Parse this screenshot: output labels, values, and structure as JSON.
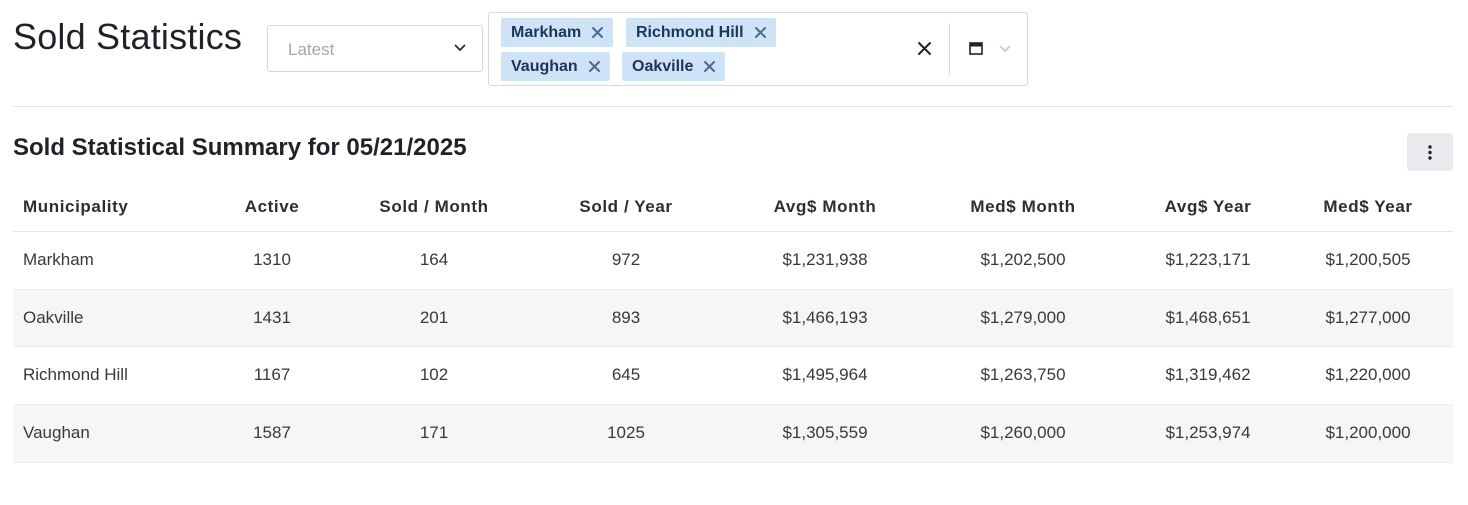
{
  "header": {
    "title": "Sold Statistics",
    "period_select": {
      "placeholder": "Latest"
    },
    "municipality_filter": {
      "chips": [
        "Markham",
        "Richmond Hill",
        "Vaughan",
        "Oakville"
      ]
    }
  },
  "summary": {
    "title": "Sold Statistical Summary for 05/21/2025",
    "columns": [
      "Municipality",
      "Active",
      "Sold / Month",
      "Sold / Year",
      "Avg$ Month",
      "Med$ Month",
      "Avg$ Year",
      "Med$ Year"
    ],
    "rows": [
      [
        "Markham",
        "1310",
        "164",
        "972",
        "$1,231,938",
        "$1,202,500",
        "$1,223,171",
        "$1,200,505"
      ],
      [
        "Oakville",
        "1431",
        "201",
        "893",
        "$1,466,193",
        "$1,279,000",
        "$1,468,651",
        "$1,277,000"
      ],
      [
        "Richmond Hill",
        "1167",
        "102",
        "645",
        "$1,495,964",
        "$1,263,750",
        "$1,319,462",
        "$1,220,000"
      ],
      [
        "Vaughan",
        "1587",
        "171",
        "1025",
        "$1,305,559",
        "$1,260,000",
        "$1,253,974",
        "$1,200,000"
      ]
    ]
  },
  "colors": {
    "chip_bg": "#cfe3f7",
    "chip_text": "#1d3557",
    "stripe": "#f6f6f6"
  },
  "icons": [
    "chevron-down-icon",
    "close-icon",
    "calendar-icon",
    "kebab-menu-icon"
  ]
}
